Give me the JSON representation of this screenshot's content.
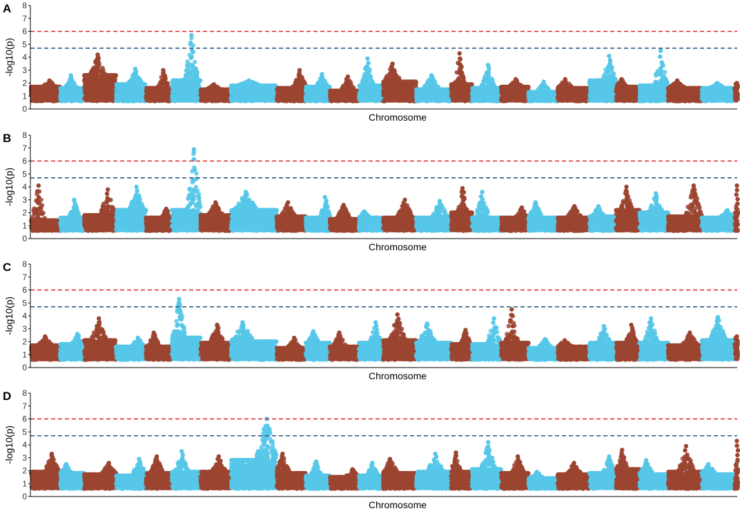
{
  "colors": {
    "odd_chromosome": "#9b4430",
    "even_chromosome": "#56c7e8",
    "suggestive_line": "#1f4e79",
    "significance_line": "#e02020",
    "axis": "#000000"
  },
  "chart_data": [
    {
      "panel": "A",
      "type": "scatter",
      "subtype": "manhattan",
      "xlabel": "Chromosome",
      "ylabel": "-log10(p)",
      "ylim": [
        0,
        8
      ],
      "yticks": [
        "0",
        "1",
        "2",
        "3",
        "4",
        "5",
        "6",
        "7",
        "8"
      ],
      "thresholds": [
        {
          "name": "significance",
          "value": 6.0
        },
        {
          "name": "suggestive",
          "value": 4.7
        }
      ],
      "chromosome_count": 25,
      "chromosome_peaks": [
        2.2,
        2.6,
        4.2,
        3.1,
        3.0,
        5.7,
        1.9,
        2.2,
        3.0,
        2.7,
        2.5,
        3.9,
        3.5,
        2.6,
        4.3,
        3.4,
        2.3,
        2.1,
        2.3,
        4.1,
        2.3,
        4.5,
        2.2,
        2.0,
        2.0
      ],
      "chromosome_baselines": [
        1.7,
        1.6,
        2.6,
        1.9,
        1.6,
        2.2,
        1.5,
        1.8,
        1.6,
        1.7,
        1.4,
        1.8,
        2.1,
        1.5,
        1.9,
        1.6,
        1.7,
        1.3,
        1.6,
        2.2,
        1.7,
        1.8,
        1.6,
        1.6,
        1.6
      ]
    },
    {
      "panel": "B",
      "type": "scatter",
      "subtype": "manhattan",
      "xlabel": "Chromosome",
      "ylabel": "-log10(p)",
      "ylim": [
        0,
        8
      ],
      "yticks": [
        "0",
        "1",
        "2",
        "3",
        "4",
        "5",
        "6",
        "7",
        "8"
      ],
      "thresholds": [
        {
          "name": "significance",
          "value": 6.0
        },
        {
          "name": "suggestive",
          "value": 4.7
        }
      ],
      "chromosome_count": 25,
      "chromosome_peaks": [
        4.1,
        3.0,
        3.8,
        4.0,
        2.3,
        6.9,
        2.8,
        3.6,
        2.8,
        3.2,
        2.6,
        2.1,
        3.0,
        2.9,
        3.9,
        3.6,
        2.4,
        2.8,
        2.5,
        2.5,
        4.0,
        3.5,
        4.1,
        2.2,
        4.1
      ],
      "chromosome_baselines": [
        1.4,
        1.6,
        1.8,
        2.2,
        1.6,
        2.2,
        1.8,
        2.2,
        1.7,
        1.6,
        1.5,
        1.6,
        1.6,
        1.6,
        2.0,
        1.6,
        1.6,
        1.6,
        1.6,
        1.7,
        2.2,
        2.0,
        1.7,
        1.6,
        2.0
      ]
    },
    {
      "panel": "C",
      "type": "scatter",
      "subtype": "manhattan",
      "xlabel": "Chromosome",
      "ylabel": "-log10(p)",
      "ylim": [
        0,
        8
      ],
      "yticks": [
        "0",
        "1",
        "2",
        "3",
        "4",
        "5",
        "6",
        "7",
        "8"
      ],
      "thresholds": [
        {
          "name": "significance",
          "value": 6.0
        },
        {
          "name": "suggestive",
          "value": 4.7
        }
      ],
      "chromosome_count": 25,
      "chromosome_peaks": [
        2.4,
        2.6,
        3.8,
        2.3,
        2.7,
        5.3,
        3.3,
        3.5,
        2.3,
        2.8,
        2.7,
        3.5,
        4.1,
        3.4,
        2.9,
        3.8,
        4.5,
        2.2,
        2.1,
        3.2,
        3.3,
        3.8,
        2.7,
        3.9,
        2.4
      ],
      "chromosome_baselines": [
        1.7,
        1.8,
        2.1,
        1.6,
        1.6,
        2.3,
        1.9,
        2.0,
        1.5,
        1.9,
        1.6,
        1.9,
        2.1,
        1.9,
        1.8,
        1.8,
        1.9,
        1.5,
        1.6,
        1.9,
        1.9,
        1.9,
        1.7,
        2.1,
        1.8
      ]
    },
    {
      "panel": "D",
      "type": "scatter",
      "subtype": "manhattan",
      "xlabel": "Chromosome",
      "ylabel": "-log10(p)",
      "ylim": [
        0,
        8
      ],
      "yticks": [
        "0",
        "1",
        "2",
        "3",
        "4",
        "5",
        "6",
        "7",
        "8"
      ],
      "thresholds": [
        {
          "name": "significance",
          "value": 6.0
        },
        {
          "name": "suggestive",
          "value": 4.7
        }
      ],
      "chromosome_count": 25,
      "chromosome_peaks": [
        3.3,
        2.5,
        2.6,
        2.9,
        3.1,
        3.5,
        3.1,
        6.0,
        3.3,
        2.7,
        2.1,
        2.6,
        2.9,
        3.3,
        3.4,
        4.2,
        3.1,
        1.9,
        2.6,
        3.1,
        3.6,
        2.8,
        3.9,
        2.5,
        4.3
      ],
      "chromosome_baselines": [
        1.9,
        1.8,
        1.7,
        1.6,
        1.8,
        1.9,
        1.9,
        2.8,
        1.8,
        1.6,
        1.5,
        1.6,
        1.8,
        1.9,
        1.9,
        2.1,
        1.8,
        1.4,
        1.7,
        1.8,
        2.1,
        1.7,
        1.9,
        1.7,
        2.1
      ]
    }
  ]
}
